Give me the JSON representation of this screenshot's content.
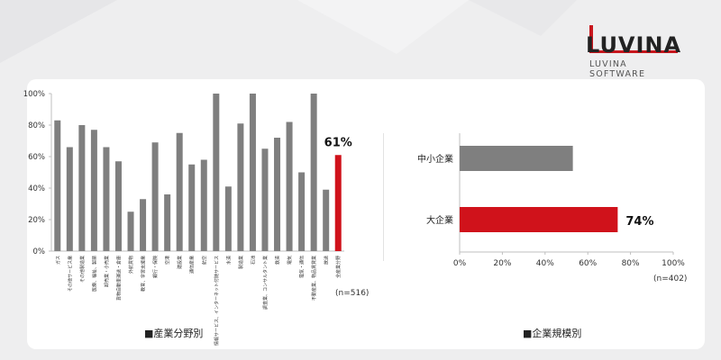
{
  "logo": {
    "word": "LUVINA",
    "sub": "LUVINA SOFTWARE"
  },
  "captions": {
    "left": "■産業分野別",
    "right": "■企業規模別"
  },
  "notes": {
    "left_n": "(n=516)",
    "right_n": "(n=402)"
  },
  "colors": {
    "gray": "#7f7f7f",
    "red": "#d0121b",
    "axis": "#bfbfbf"
  },
  "chart_data": [
    {
      "type": "bar",
      "categories": [
        "ガス",
        "その他サービス業",
        "その他製造業",
        "医療、福祉、製薬",
        "卸売業・小売業",
        "貨物自動車運送・倉庫",
        "外航貨物",
        "教育、学習支援業",
        "銀行・保険",
        "空港",
        "建設業",
        "通信産業",
        "航空",
        "情報サービス、インターネット付随サービス",
        "水道",
        "製造業",
        "石油",
        "調査業、コンサルタント業",
        "鉄道",
        "電気",
        "電気・通信",
        "不動産業、物品賃貸業",
        "放送",
        "全産業分野"
      ],
      "values": [
        83,
        66,
        80,
        77,
        66,
        57,
        25,
        33,
        69,
        36,
        75,
        55,
        58,
        100,
        41,
        81,
        100,
        65,
        72,
        82,
        50,
        100,
        39,
        61
      ],
      "highlight_index": 23,
      "highlight_label": "61%",
      "ylim": [
        0,
        100
      ],
      "yticks": [
        "0%",
        "20%",
        "40%",
        "60%",
        "80%",
        "100%"
      ],
      "orientation": "vertical"
    },
    {
      "type": "bar",
      "orientation": "horizontal",
      "categories": [
        "中小企業",
        "大企業"
      ],
      "values": [
        53,
        74
      ],
      "highlight_index": 1,
      "highlight_label": "74%",
      "xlim": [
        0,
        100
      ],
      "xticks": [
        "0%",
        "20%",
        "40%",
        "60%",
        "80%",
        "100%"
      ]
    }
  ]
}
